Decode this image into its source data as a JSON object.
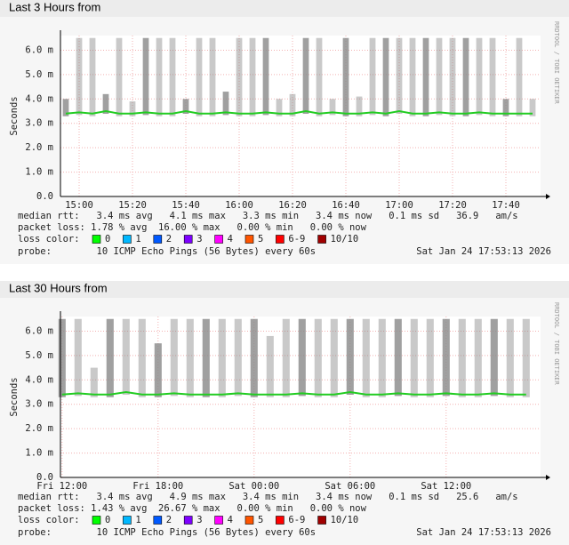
{
  "chart_data": [
    {
      "type": "line",
      "title": "Last 3 Hours from",
      "y_label": "Seconds",
      "side_label": "RRDTOOL / TOBI OETIKER",
      "x": [
        895,
        900,
        905,
        910,
        915,
        920,
        925,
        930,
        935,
        940,
        945,
        950,
        955,
        960,
        965,
        970,
        975,
        980,
        985,
        990,
        995,
        1000,
        1005,
        1010,
        1015,
        1020,
        1025,
        1030,
        1035,
        1040,
        1045,
        1050,
        1055,
        1060,
        1065,
        1070
      ],
      "series": [
        {
          "color": "#22cc22",
          "values": [
            3.4,
            3.45,
            3.4,
            3.5,
            3.4,
            3.4,
            3.45,
            3.4,
            3.4,
            3.5,
            3.4,
            3.4,
            3.45,
            3.4,
            3.4,
            3.45,
            3.4,
            3.4,
            3.5,
            3.4,
            3.45,
            3.4,
            3.4,
            3.45,
            3.4,
            3.5,
            3.4,
            3.4,
            3.45,
            3.4,
            3.4,
            3.45,
            3.4,
            3.4,
            3.4,
            3.4
          ]
        },
        {
          "color": "#888888",
          "values": [
            4.0,
            6.5,
            6.5,
            4.2,
            6.5,
            3.9,
            6.5,
            6.5,
            6.5,
            4.0,
            6.5,
            6.5,
            4.3,
            6.5,
            6.5,
            6.5,
            4.0,
            4.2,
            6.5,
            6.5,
            4.0,
            6.5,
            4.1,
            6.5,
            6.5,
            6.5,
            6.5,
            6.5,
            6.5,
            6.5,
            6.5,
            6.5,
            6.5,
            4.0,
            6.5,
            4.0
          ]
        }
      ],
      "xlim": [
        893,
        1073
      ],
      "ylim": [
        0,
        6.6
      ],
      "xticks": [
        {
          "value": 900,
          "label": "15:00"
        },
        {
          "value": 920,
          "label": "15:20"
        },
        {
          "value": 940,
          "label": "15:40"
        },
        {
          "value": 960,
          "label": "16:00"
        },
        {
          "value": 980,
          "label": "16:20"
        },
        {
          "value": 1000,
          "label": "16:40"
        },
        {
          "value": 1020,
          "label": "17:00"
        },
        {
          "value": 1040,
          "label": "17:20"
        },
        {
          "value": 1060,
          "label": "17:40"
        }
      ],
      "yticks": [
        {
          "value": 0,
          "label": "0.0"
        },
        {
          "value": 1,
          "label": "1.0 m"
        },
        {
          "value": 2,
          "label": "2.0 m"
        },
        {
          "value": 3,
          "label": "3.0 m"
        },
        {
          "value": 4,
          "label": "4.0 m"
        },
        {
          "value": 5,
          "label": "5.0 m"
        },
        {
          "value": 6,
          "label": "6.0 m"
        }
      ],
      "grid": true,
      "stats": [
        "median rtt:   3.4 ms avg   4.1 ms max   3.3 ms min   3.4 ms now   0.1 ms sd   36.9   am/s",
        "packet loss: 1.78 % avg  16.00 % max   0.00 % min   0.00 % now"
      ],
      "loss_label": "loss color:",
      "loss_colors": [
        {
          "label": "0",
          "color": "#00ff00"
        },
        {
          "label": "1",
          "color": "#00b8ff"
        },
        {
          "label": "2",
          "color": "#0059ff"
        },
        {
          "label": "3",
          "color": "#7e00ff"
        },
        {
          "label": "4",
          "color": "#ff00ff"
        },
        {
          "label": "5",
          "color": "#ff5500"
        },
        {
          "label": "6-9",
          "color": "#ff0000"
        },
        {
          "label": "10/10",
          "color": "#a10000"
        }
      ],
      "probe": "probe:        10 ICMP Echo Pings (56 Bytes) every 60s",
      "timestamp": "Sat Jan 24 17:53:13 2026"
    },
    {
      "type": "line",
      "title": "Last 30 Hours from",
      "y_label": "Seconds",
      "side_label": "RRDTOOL / TOBI OETIKER",
      "x": [
        12,
        13,
        14,
        15,
        16,
        17,
        18,
        19,
        20,
        21,
        22,
        23,
        24,
        25,
        26,
        27,
        28,
        29,
        30,
        31,
        32,
        33,
        34,
        35,
        36,
        37,
        38,
        39,
        40,
        41
      ],
      "series": [
        {
          "color": "#22cc22",
          "values": [
            3.4,
            3.45,
            3.4,
            3.4,
            3.5,
            3.4,
            3.4,
            3.45,
            3.4,
            3.4,
            3.4,
            3.45,
            3.4,
            3.4,
            3.4,
            3.45,
            3.4,
            3.4,
            3.5,
            3.4,
            3.4,
            3.45,
            3.4,
            3.4,
            3.45,
            3.4,
            3.4,
            3.45,
            3.4,
            3.4
          ]
        },
        {
          "color": "#888888",
          "values": [
            6.5,
            6.5,
            4.5,
            6.5,
            6.5,
            6.5,
            5.5,
            6.5,
            6.5,
            6.5,
            6.5,
            6.5,
            6.5,
            5.8,
            6.5,
            6.5,
            6.5,
            6.5,
            6.5,
            6.5,
            6.5,
            6.5,
            6.5,
            6.5,
            6.5,
            6.5,
            6.5,
            6.5,
            6.5,
            6.5
          ]
        }
      ],
      "xlim": [
        11.9,
        41.9
      ],
      "ylim": [
        0,
        6.6
      ],
      "xticks": [
        {
          "value": 12,
          "label": "Fri 12:00"
        },
        {
          "value": 18,
          "label": "Fri 18:00"
        },
        {
          "value": 24,
          "label": "Sat 00:00"
        },
        {
          "value": 30,
          "label": "Sat 06:00"
        },
        {
          "value": 36,
          "label": "Sat 12:00"
        }
      ],
      "yticks": [
        {
          "value": 0,
          "label": "0.0"
        },
        {
          "value": 1,
          "label": "1.0 m"
        },
        {
          "value": 2,
          "label": "2.0 m"
        },
        {
          "value": 3,
          "label": "3.0 m"
        },
        {
          "value": 4,
          "label": "4.0 m"
        },
        {
          "value": 5,
          "label": "5.0 m"
        },
        {
          "value": 6,
          "label": "6.0 m"
        }
      ],
      "grid": true,
      "stats": [
        "median rtt:   3.4 ms avg   4.9 ms max   3.4 ms min   3.4 ms now   0.1 ms sd   25.6   am/s",
        "packet loss: 1.43 % avg  26.67 % max   0.00 % min   0.00 % now"
      ],
      "loss_label": "loss color:",
      "loss_colors": [
        {
          "label": "0",
          "color": "#00ff00"
        },
        {
          "label": "1",
          "color": "#00b8ff"
        },
        {
          "label": "2",
          "color": "#0059ff"
        },
        {
          "label": "3",
          "color": "#7e00ff"
        },
        {
          "label": "4",
          "color": "#ff00ff"
        },
        {
          "label": "5",
          "color": "#ff5500"
        },
        {
          "label": "6-9",
          "color": "#ff0000"
        },
        {
          "label": "10/10",
          "color": "#a10000"
        }
      ],
      "probe": "probe:        10 ICMP Echo Pings (56 Bytes) every 60s",
      "timestamp": "Sat Jan 24 17:53:13 2026"
    }
  ]
}
